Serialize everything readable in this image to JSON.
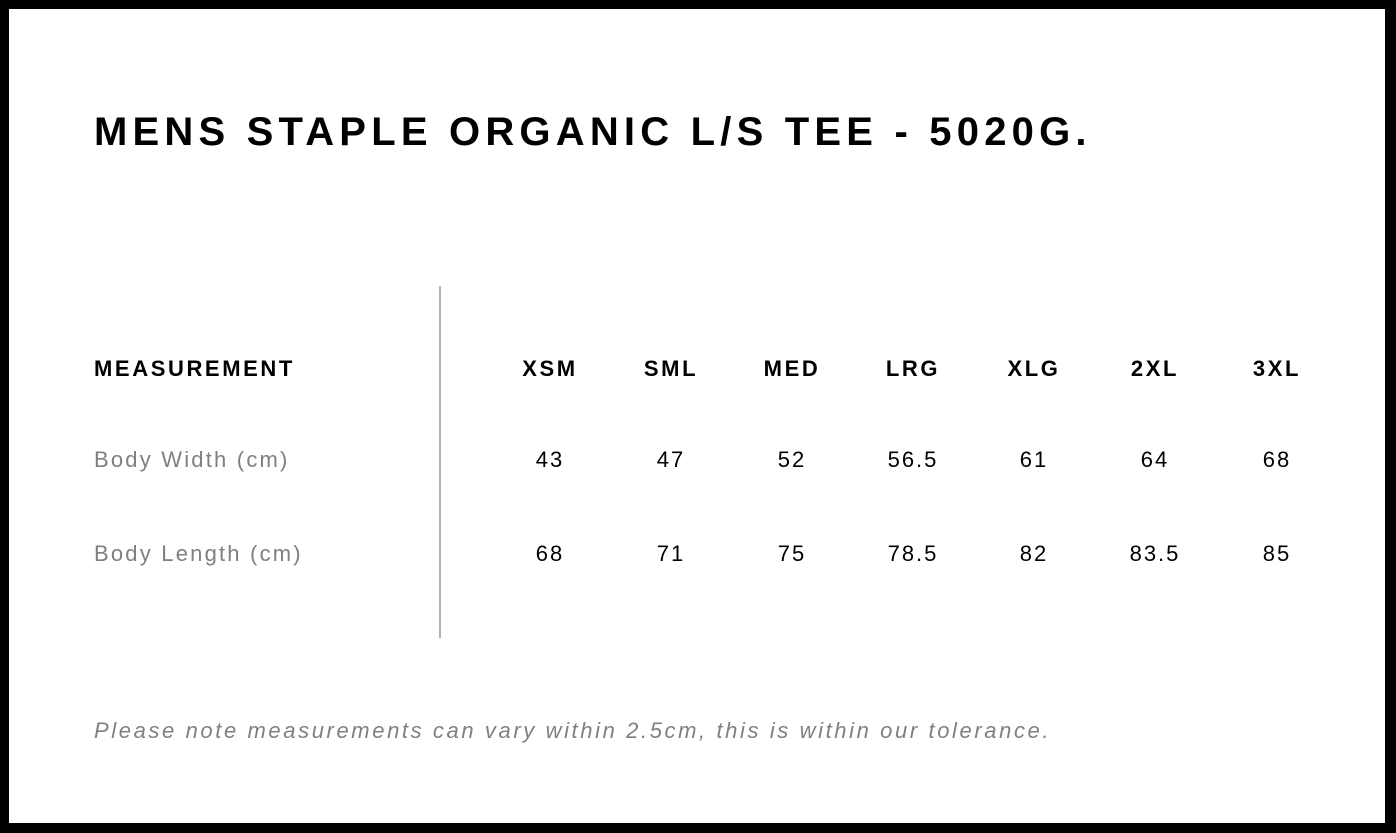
{
  "title": "MENS STAPLE ORGANIC L/S TEE - 5020G.",
  "table": {
    "header_label": "MEASUREMENT",
    "sizes": [
      "XSM",
      "SML",
      "MED",
      "LRG",
      "XLG",
      "2XL",
      "3XL"
    ],
    "rows": [
      {
        "label": "Body Width (cm)",
        "values": [
          "43",
          "47",
          "52",
          "56.5",
          "61",
          "64",
          "68"
        ]
      },
      {
        "label": "Body Length (cm)",
        "values": [
          "68",
          "71",
          "75",
          "78.5",
          "82",
          "83.5",
          "85"
        ]
      }
    ]
  },
  "note": "Please note measurements can vary within 2.5cm, this is within our tolerance."
}
